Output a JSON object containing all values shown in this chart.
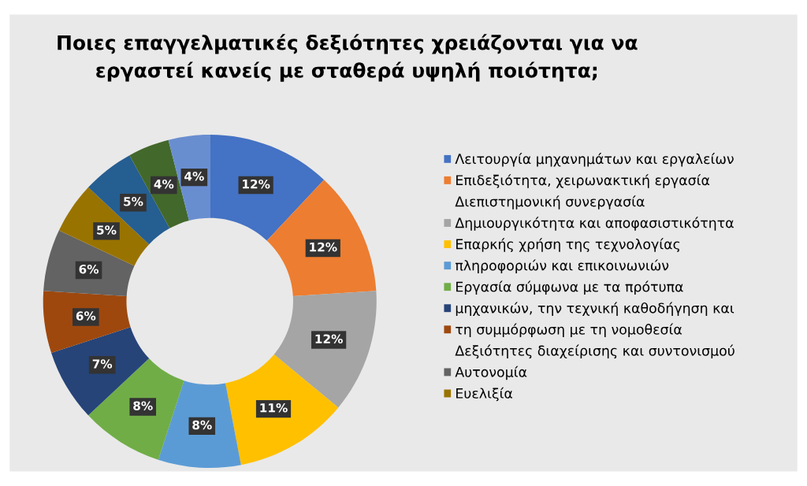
{
  "chart_data": {
    "type": "donut",
    "title": "Ποιες επαγγελματικές δεξιότητες χρειάζονται για να\nεργαστεί κανείς με σταθερά υψηλή ποιότητα;",
    "categories": [
      "Λειτουργία μηχανημάτων και εργαλείων",
      "Επιδεξιότητα, χειρωνακτική εργασία\nΔιεπιστημονική συνεργασία",
      "Δημιουργικότητα και αποφασιστικότητα",
      "Επαρκής χρήση της τεχνολογίας",
      "πληροφοριών και επικοινωνιών",
      "Εργασία σύμφωνα με τα πρότυπα",
      "μηχανικών, την τεχνική καθοδήγηση και",
      "τη συμμόρφωση με τη νομοθεσία\nΔεξιότητες διαχείρισης και συντονισμού",
      "Αυτονομία",
      "Ευελιξία",
      null,
      null,
      null
    ],
    "values": [
      12,
      12,
      12,
      11,
      8,
      8,
      7,
      6,
      6,
      5,
      5,
      4,
      4
    ],
    "colors": [
      "#4472c4",
      "#ed7d31",
      "#a5a5a5",
      "#ffc000",
      "#5b9bd5",
      "#70ad47",
      "#264478",
      "#9e480e",
      "#636363",
      "#997300",
      "#255e91",
      "#43682b",
      "#698ed0"
    ],
    "value_labels": [
      "12%",
      "12%",
      "12%",
      "11%",
      "8%",
      "8%",
      "7%",
      "6%",
      "6%",
      "5%",
      "5%",
      "4%",
      "4%"
    ],
    "legend": "right"
  }
}
